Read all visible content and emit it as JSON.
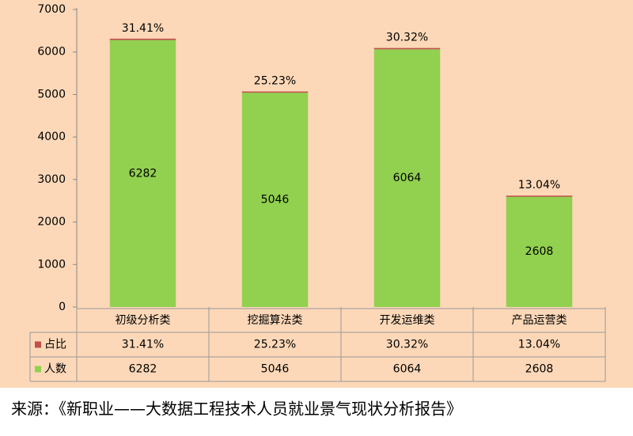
{
  "chart_data": {
    "type": "bar",
    "stacked": true,
    "categories": [
      "初级分析类",
      "挖掘算法类",
      "开发运维类",
      "产品运营类"
    ],
    "series": [
      {
        "name": "人数",
        "color": "#92d050",
        "values": [
          6282,
          5046,
          6064,
          2608
        ]
      },
      {
        "name": "占比",
        "color": "#c0504d",
        "values": [
          31.41,
          25.23,
          30.32,
          13.04
        ],
        "value_labels": [
          "31.41%",
          "25.23%",
          "30.32%",
          "13.04%"
        ]
      }
    ],
    "ylim": [
      0,
      7000
    ],
    "yticks": [
      0,
      1000,
      2000,
      3000,
      4000,
      5000,
      6000,
      7000
    ],
    "grid": false,
    "background": "#fcd8b8",
    "source": "来源：《新职业——大数据工程技术人员就业景气现状分析报告》"
  }
}
